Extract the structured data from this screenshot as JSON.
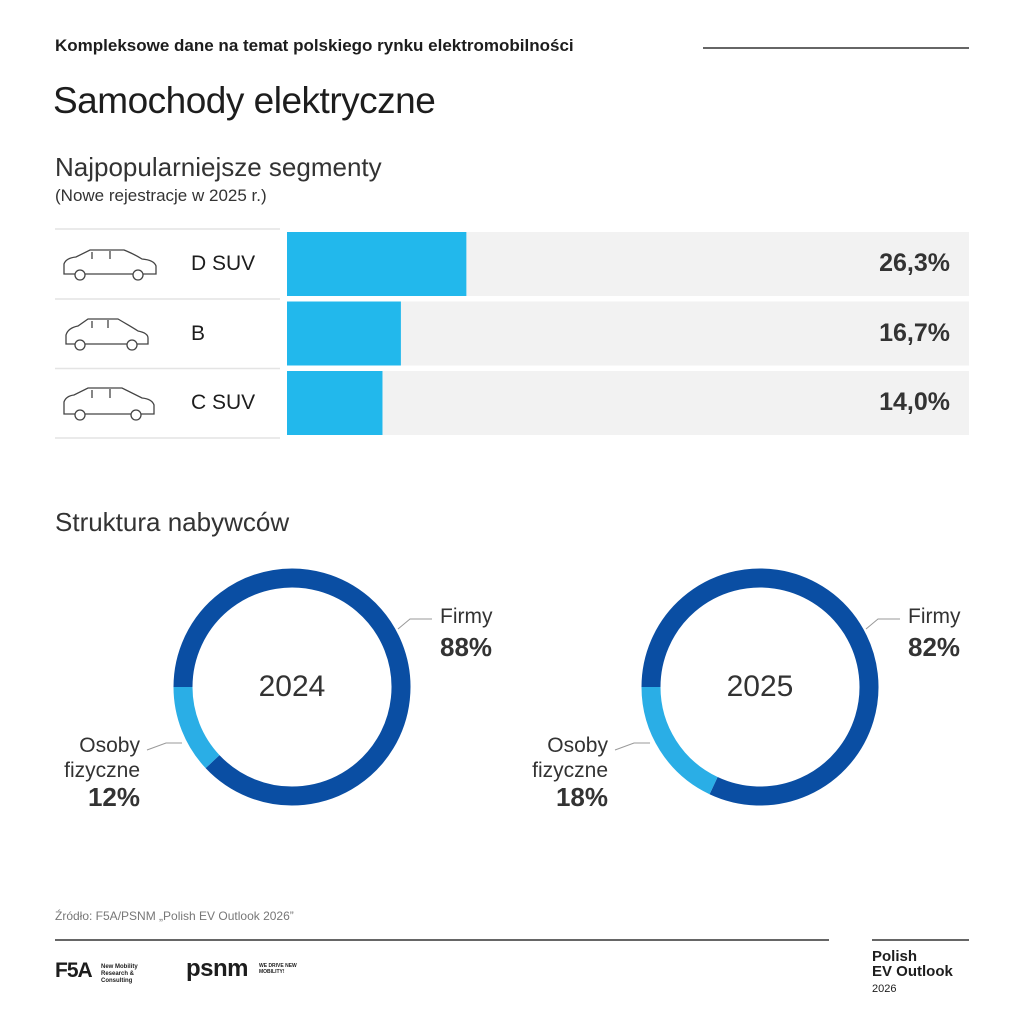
{
  "header": {
    "kicker": "Kompleksowe dane na temat polskiego rynku elektromobilności",
    "title": "Samochody elektryczne"
  },
  "section_title": "Struktura nabywców",
  "chart_data": [
    {
      "type": "bar",
      "orientation": "horizontal",
      "title": "Najpopularniejsze segmenty",
      "subtitle": "(Nowe rejestracje w 2025 r.)",
      "categories": [
        "D SUV",
        "B",
        "C SUV"
      ],
      "values": [
        26.3,
        16.7,
        14.0
      ],
      "value_labels": [
        "26,3%",
        "16,7%",
        "14,0%"
      ],
      "color": "#22b8ec",
      "xlim": [
        0,
        100
      ]
    },
    {
      "type": "pie",
      "donut": true,
      "title": "2024",
      "categories": [
        "Firmy",
        "Osoby fizyczne"
      ],
      "values": [
        88,
        12
      ],
      "value_labels": [
        "88%",
        "12%"
      ],
      "colors": [
        "#0a4ea3",
        "#2aaee6"
      ]
    },
    {
      "type": "pie",
      "donut": true,
      "title": "2025",
      "categories": [
        "Firmy",
        "Osoby fizyczne"
      ],
      "values": [
        82,
        18
      ],
      "value_labels": [
        "82%",
        "18%"
      ],
      "colors": [
        "#0a4ea3",
        "#2aaee6"
      ]
    }
  ],
  "source": "Źródło: F5A/PSNM „Polish EV Outlook 2026”",
  "footer": {
    "f5a": "F5A",
    "f5a_tagline": "New Mobility Research & Consulting",
    "psnm": "psnm",
    "psnm_tagline": "WE DRIVE NEW MOBILITY!",
    "report_line1": "Polish",
    "report_line2": "EV Outlook",
    "report_year": "2026"
  }
}
